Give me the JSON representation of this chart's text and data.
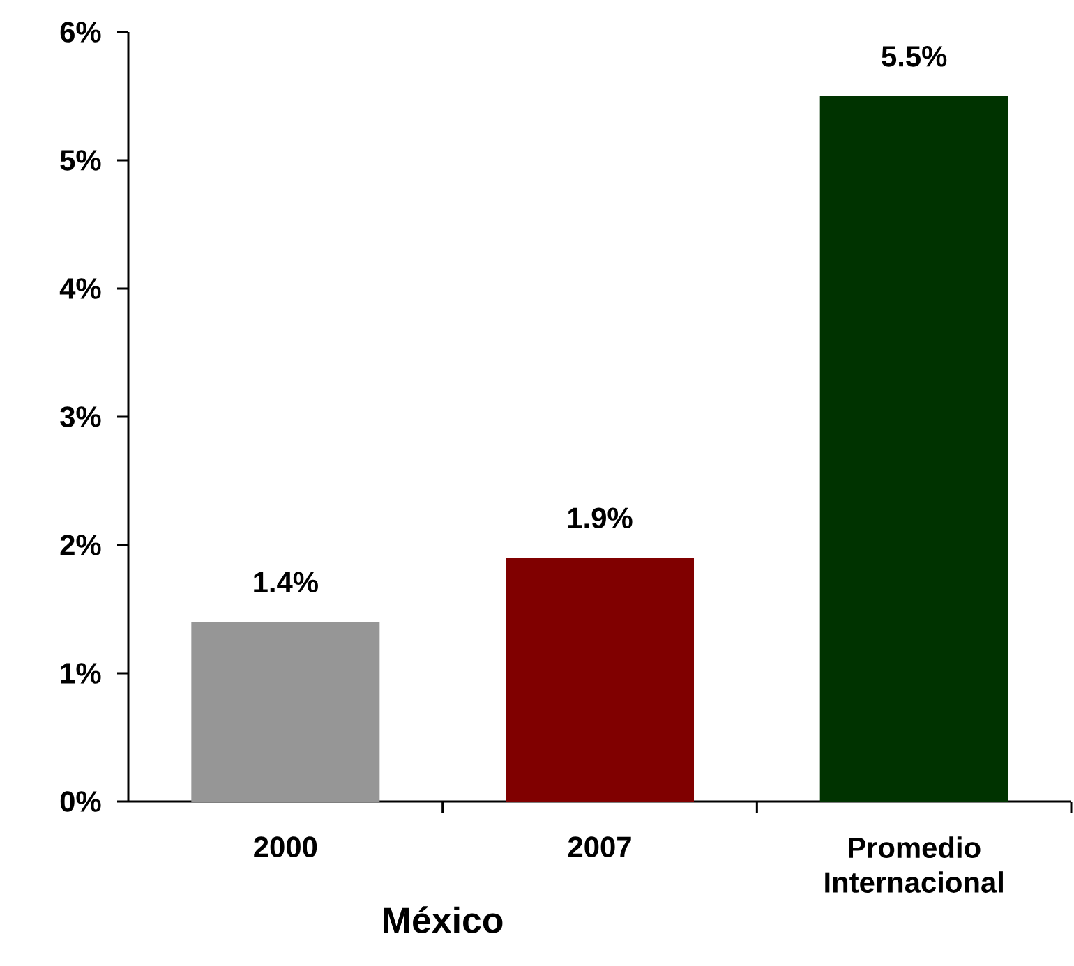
{
  "chart_data": {
    "type": "bar",
    "categories": [
      "2000",
      "2007",
      "Promedio Internacional"
    ],
    "values": [
      1.4,
      1.9,
      5.5
    ],
    "colors": [
      "#969696",
      "#800000",
      "#003300"
    ],
    "value_labels": [
      "1.4%",
      "1.9%",
      "5.5%"
    ],
    "ylim": [
      0,
      6
    ],
    "yticks": [
      {
        "value": 0,
        "label": "0%"
      },
      {
        "value": 1,
        "label": "1%"
      },
      {
        "value": 2,
        "label": "2%"
      },
      {
        "value": 3,
        "label": "3%"
      },
      {
        "value": 4,
        "label": "4%"
      },
      {
        "value": 5,
        "label": "5%"
      },
      {
        "value": 6,
        "label": "6%"
      }
    ],
    "annotations": [
      "México"
    ]
  }
}
